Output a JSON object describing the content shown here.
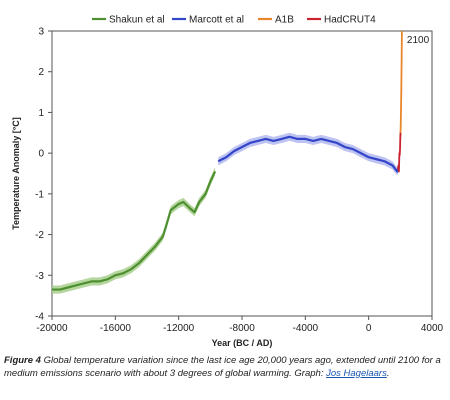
{
  "chart_data": {
    "type": "line",
    "title": "",
    "xlabel": "Year (BC / AD)",
    "ylabel": "Temperature Anomaly [°C]",
    "xlim": [
      -20000,
      4000
    ],
    "ylim": [
      -4,
      3
    ],
    "x_ticks": [
      -20000,
      -16000,
      -12000,
      -8000,
      -4000,
      0,
      4000
    ],
    "y_ticks": [
      -4,
      -3,
      -2,
      -1,
      0,
      1,
      2,
      3
    ],
    "x_tick_labels": [
      "-20000",
      "-16000",
      "-12000",
      "-8000",
      "-4000",
      "0",
      "4000"
    ],
    "y_tick_labels": [
      "-4",
      "-3",
      "-2",
      "-1",
      "0",
      "1",
      "2",
      "3"
    ],
    "grid": false,
    "legend_position": "top",
    "annotations": [
      {
        "text": "2100",
        "x": 2100,
        "y": 3
      }
    ],
    "series": [
      {
        "name": "Shakun et al",
        "color": "#4e8f2f",
        "band_color": "#a9cf8f",
        "band_halfwidth": 0.1,
        "points": [
          [
            -20000,
            -3.35
          ],
          [
            -19500,
            -3.35
          ],
          [
            -19000,
            -3.3
          ],
          [
            -18500,
            -3.25
          ],
          [
            -18000,
            -3.2
          ],
          [
            -17500,
            -3.15
          ],
          [
            -17000,
            -3.15
          ],
          [
            -16500,
            -3.1
          ],
          [
            -16000,
            -3.0
          ],
          [
            -15500,
            -2.95
          ],
          [
            -15000,
            -2.85
          ],
          [
            -14500,
            -2.7
          ],
          [
            -14000,
            -2.5
          ],
          [
            -13500,
            -2.3
          ],
          [
            -13000,
            -2.05
          ],
          [
            -12800,
            -1.8
          ],
          [
            -12500,
            -1.4
          ],
          [
            -12000,
            -1.25
          ],
          [
            -11700,
            -1.2
          ],
          [
            -11300,
            -1.35
          ],
          [
            -11000,
            -1.45
          ],
          [
            -10700,
            -1.2
          ],
          [
            -10300,
            -1.0
          ],
          [
            -10000,
            -0.7
          ],
          [
            -9700,
            -0.45
          ]
        ]
      },
      {
        "name": "Marcott et al",
        "color": "#3345c8",
        "band_color": "#b3b8ee",
        "band_halfwidth": 0.1,
        "points": [
          [
            -9500,
            -0.2
          ],
          [
            -9000,
            -0.1
          ],
          [
            -8500,
            0.05
          ],
          [
            -8000,
            0.15
          ],
          [
            -7500,
            0.25
          ],
          [
            -7000,
            0.3
          ],
          [
            -6500,
            0.35
          ],
          [
            -6000,
            0.3
          ],
          [
            -5500,
            0.35
          ],
          [
            -5000,
            0.4
          ],
          [
            -4500,
            0.35
          ],
          [
            -4000,
            0.35
          ],
          [
            -3500,
            0.3
          ],
          [
            -3000,
            0.35
          ],
          [
            -2500,
            0.3
          ],
          [
            -2000,
            0.25
          ],
          [
            -1500,
            0.15
          ],
          [
            -1000,
            0.1
          ],
          [
            -500,
            0.0
          ],
          [
            0,
            -0.1
          ],
          [
            500,
            -0.15
          ],
          [
            1000,
            -0.2
          ],
          [
            1500,
            -0.3
          ],
          [
            1800,
            -0.45
          ],
          [
            1900,
            -0.35
          ]
        ]
      },
      {
        "name": "A1B",
        "color": "#e8862a",
        "points": [
          [
            2000,
            0.4
          ],
          [
            2020,
            0.6
          ],
          [
            2040,
            1.0
          ],
          [
            2060,
            1.5
          ],
          [
            2080,
            2.2
          ],
          [
            2100,
            3.0
          ]
        ]
      },
      {
        "name": "HadCRUT4",
        "color": "#c8232f",
        "points": [
          [
            1850,
            -0.4
          ],
          [
            1880,
            -0.3
          ],
          [
            1910,
            -0.45
          ],
          [
            1940,
            0.0
          ],
          [
            1960,
            -0.05
          ],
          [
            1980,
            0.1
          ],
          [
            2000,
            0.4
          ],
          [
            2012,
            0.5
          ]
        ]
      }
    ]
  },
  "caption": {
    "label": "Figure 4",
    "text": " Global temperature variation since the last ice age 20,000 years ago, extended until 2100 for a medium emissions scenario with about 3 degrees of global warming. Graph: ",
    "link": "Jos Hagelaars",
    "end": "."
  }
}
